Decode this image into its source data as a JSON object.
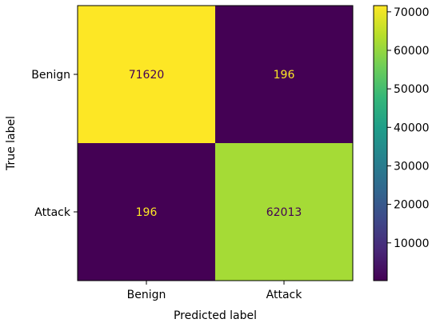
{
  "chart_data": {
    "type": "heatmap",
    "title": "",
    "xlabel": "Predicted label",
    "ylabel": "True label",
    "x_categories": [
      "Benign",
      "Attack"
    ],
    "y_categories": [
      "Benign",
      "Attack"
    ],
    "matrix": [
      [
        71620,
        196
      ],
      [
        196,
        62013
      ]
    ],
    "cell_text_colors": [
      [
        "#440154",
        "#fde725"
      ],
      [
        "#fde725",
        "#440154"
      ]
    ],
    "cell_colors": [
      [
        "#fde725",
        "#440154"
      ],
      [
        "#440154",
        "#a5db36"
      ]
    ],
    "colorbar": {
      "ticks": [
        10000,
        20000,
        30000,
        40000,
        50000,
        60000,
        70000
      ],
      "tick_labels": [
        "10000",
        "20000",
        "30000",
        "40000",
        "50000",
        "60000",
        "70000"
      ],
      "range": [
        196,
        71620
      ],
      "colormap": "viridis"
    }
  }
}
